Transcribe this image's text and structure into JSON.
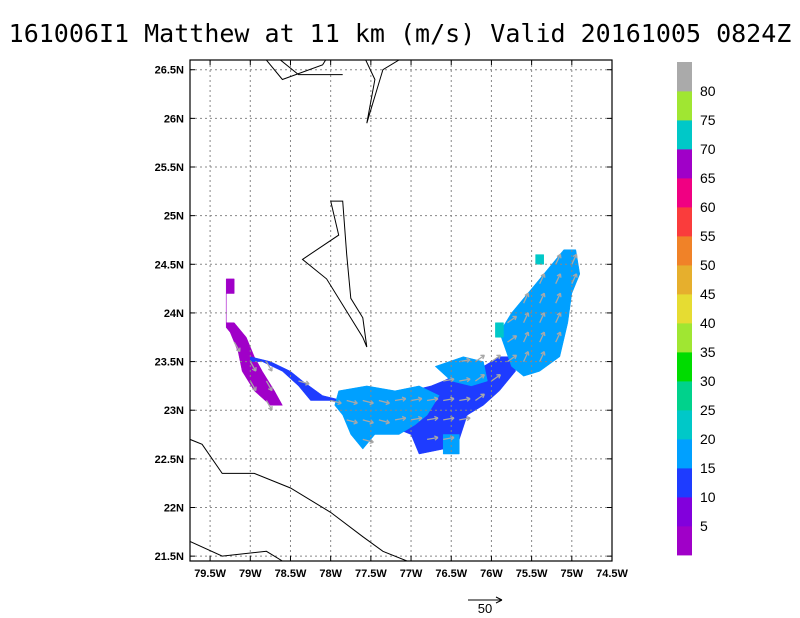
{
  "chart_data": {
    "type": "heatmap",
    "title": "161006I1 Matthew at 11 km (m/s) Valid 20161005 0824Z",
    "xlabel": "",
    "ylabel": "",
    "xlim": [
      -79.75,
      -74.5
    ],
    "ylim": [
      21.45,
      26.6
    ],
    "grid": true,
    "x_ticks": [
      {
        "value": -79.5,
        "label": "79.5W"
      },
      {
        "value": -79.0,
        "label": "79W"
      },
      {
        "value": -78.5,
        "label": "78.5W"
      },
      {
        "value": -78.0,
        "label": "78W"
      },
      {
        "value": -77.5,
        "label": "77.5W"
      },
      {
        "value": -77.0,
        "label": "77W"
      },
      {
        "value": -76.5,
        "label": "76.5W"
      },
      {
        "value": -76.0,
        "label": "76W"
      },
      {
        "value": -75.5,
        "label": "75.5W"
      },
      {
        "value": -75.0,
        "label": "75W"
      },
      {
        "value": -74.5,
        "label": "74.5W"
      }
    ],
    "y_ticks": [
      {
        "value": 21.5,
        "label": "21.5N"
      },
      {
        "value": 22.0,
        "label": "22N"
      },
      {
        "value": 22.5,
        "label": "22.5N"
      },
      {
        "value": 23.0,
        "label": "23N"
      },
      {
        "value": 23.5,
        "label": "23.5N"
      },
      {
        "value": 24.0,
        "label": "24N"
      },
      {
        "value": 24.5,
        "label": "24.5N"
      },
      {
        "value": 25.0,
        "label": "25N"
      },
      {
        "value": 25.5,
        "label": "25.5N"
      },
      {
        "value": 26.0,
        "label": "26N"
      },
      {
        "value": 26.5,
        "label": "26.5N"
      }
    ],
    "colorbar": {
      "levels": [
        "5",
        "10",
        "15",
        "20",
        "25",
        "30",
        "35",
        "40",
        "45",
        "50",
        "55",
        "60",
        "65",
        "70",
        "75",
        "80"
      ],
      "colors": [
        "#a000c8",
        "#8200dc",
        "#1e3cff",
        "#00a0ff",
        "#00c8c8",
        "#00d28c",
        "#00dc00",
        "#a0e632",
        "#e6dc32",
        "#e6af2d",
        "#f08228",
        "#fa3c3c",
        "#f00082",
        "#a000c8",
        "#00c8c8",
        "#a0e632",
        "#aaaaaa"
      ]
    },
    "reference_vector": {
      "label": "50",
      "units": "m/s"
    },
    "regions": [
      {
        "name": "purple-west",
        "color": "#a000c8",
        "band": "5-10",
        "polygon": [
          [
            -79.3,
            24.35
          ],
          [
            -79.2,
            24.35
          ],
          [
            -79.2,
            24.2
          ],
          [
            -79.3,
            24.2
          ],
          [
            -79.3,
            23.9
          ],
          [
            -79.2,
            23.9
          ],
          [
            -79.05,
            23.75
          ],
          [
            -78.95,
            23.55
          ],
          [
            -78.85,
            23.4
          ],
          [
            -78.7,
            23.2
          ],
          [
            -78.6,
            23.05
          ],
          [
            -78.75,
            23.05
          ],
          [
            -78.95,
            23.2
          ],
          [
            -79.1,
            23.4
          ],
          [
            -79.15,
            23.6
          ],
          [
            -79.25,
            23.8
          ],
          [
            -79.3,
            23.85
          ]
        ]
      },
      {
        "name": "blue-10-band",
        "color": "#1e3cff",
        "band": "10-15",
        "polygon": [
          [
            -79.0,
            23.5
          ],
          [
            -78.85,
            23.5
          ],
          [
            -78.6,
            23.4
          ],
          [
            -78.4,
            23.25
          ],
          [
            -78.25,
            23.1
          ],
          [
            -78.0,
            23.1
          ],
          [
            -77.75,
            23.05
          ],
          [
            -77.55,
            22.9
          ],
          [
            -77.5,
            22.75
          ],
          [
            -77.3,
            22.85
          ],
          [
            -77.0,
            22.75
          ],
          [
            -76.9,
            22.55
          ],
          [
            -76.6,
            22.6
          ],
          [
            -76.4,
            22.7
          ],
          [
            -76.3,
            22.95
          ],
          [
            -76.1,
            23.05
          ],
          [
            -75.9,
            23.2
          ],
          [
            -75.7,
            23.4
          ],
          [
            -75.7,
            23.55
          ],
          [
            -75.9,
            23.55
          ],
          [
            -76.1,
            23.45
          ],
          [
            -76.35,
            23.4
          ],
          [
            -76.6,
            23.3
          ],
          [
            -76.75,
            23.25
          ],
          [
            -77.0,
            23.2
          ],
          [
            -77.3,
            23.15
          ],
          [
            -77.55,
            23.1
          ],
          [
            -77.85,
            23.1
          ],
          [
            -78.1,
            23.15
          ],
          [
            -78.35,
            23.3
          ],
          [
            -78.5,
            23.4
          ],
          [
            -78.75,
            23.5
          ],
          [
            -79.0,
            23.55
          ]
        ]
      },
      {
        "name": "blue-15-west",
        "color": "#00a0ff",
        "band": "15-20",
        "polygon": [
          [
            -77.9,
            23.2
          ],
          [
            -77.55,
            23.25
          ],
          [
            -77.2,
            23.2
          ],
          [
            -76.9,
            23.25
          ],
          [
            -76.65,
            23.15
          ],
          [
            -76.8,
            22.95
          ],
          [
            -76.95,
            22.85
          ],
          [
            -77.15,
            22.75
          ],
          [
            -77.45,
            22.75
          ],
          [
            -77.6,
            22.6
          ],
          [
            -77.75,
            22.75
          ],
          [
            -77.85,
            22.95
          ],
          [
            -77.95,
            23.05
          ]
        ]
      },
      {
        "name": "blue-15-east",
        "color": "#00a0ff",
        "band": "15-20",
        "polygon": [
          [
            -75.9,
            23.8
          ],
          [
            -75.75,
            24.0
          ],
          [
            -75.55,
            24.2
          ],
          [
            -75.4,
            24.35
          ],
          [
            -75.1,
            24.65
          ],
          [
            -74.95,
            24.65
          ],
          [
            -74.9,
            24.4
          ],
          [
            -75.0,
            24.2
          ],
          [
            -75.05,
            23.9
          ],
          [
            -75.15,
            23.55
          ],
          [
            -75.4,
            23.4
          ],
          [
            -75.6,
            23.35
          ],
          [
            -75.75,
            23.45
          ]
        ]
      },
      {
        "name": "blue-15-core",
        "color": "#00a0ff",
        "band": "15-20",
        "polygon": [
          [
            -76.7,
            23.45
          ],
          [
            -76.35,
            23.55
          ],
          [
            -76.1,
            23.5
          ],
          [
            -76.05,
            23.3
          ],
          [
            -76.25,
            23.25
          ],
          [
            -76.5,
            23.3
          ]
        ]
      },
      {
        "name": "blue-15-south",
        "color": "#00a0ff",
        "band": "15-20",
        "polygon": [
          [
            -76.6,
            22.75
          ],
          [
            -76.4,
            22.75
          ],
          [
            -76.4,
            22.55
          ],
          [
            -76.6,
            22.55
          ]
        ]
      },
      {
        "name": "teal-patches",
        "color": "#00c8c8",
        "band": "20-25",
        "polygon": [
          [
            -75.45,
            24.6
          ],
          [
            -75.35,
            24.6
          ],
          [
            -75.35,
            24.5
          ],
          [
            -75.45,
            24.5
          ]
        ]
      },
      {
        "name": "teal-patch-mid",
        "color": "#00c8c8",
        "band": "20-25",
        "polygon": [
          [
            -75.95,
            23.9
          ],
          [
            -75.85,
            23.9
          ],
          [
            -75.85,
            23.75
          ],
          [
            -75.95,
            23.75
          ]
        ]
      }
    ],
    "map_lines": [
      [
        [
          -78.95,
          26.75
        ],
        [
          -78.6,
          26.4
        ],
        [
          -78.1,
          26.55
        ],
        [
          -77.95,
          26.75
        ]
      ],
      [
        [
          -78.85,
          26.75
        ],
        [
          -78.4,
          26.45
        ],
        [
          -77.85,
          26.45
        ]
      ],
      [
        [
          -77.65,
          26.75
        ],
        [
          -77.45,
          26.4
        ],
        [
          -77.55,
          25.95
        ],
        [
          -77.35,
          26.5
        ],
        [
          -77.15,
          26.6
        ]
      ],
      [
        [
          -78.0,
          25.15
        ],
        [
          -77.9,
          24.8
        ],
        [
          -78.35,
          24.55
        ],
        [
          -78.05,
          24.35
        ],
        [
          -77.6,
          23.75
        ],
        [
          -77.55,
          23.65
        ],
        [
          -77.6,
          23.95
        ],
        [
          -77.75,
          24.15
        ],
        [
          -77.8,
          24.6
        ],
        [
          -77.85,
          25.15
        ],
        [
          -78.0,
          25.15
        ]
      ],
      [
        [
          -79.75,
          22.7
        ],
        [
          -79.6,
          22.65
        ],
        [
          -79.35,
          22.35
        ],
        [
          -78.95,
          22.35
        ],
        [
          -78.5,
          22.2
        ],
        [
          -78.0,
          21.95
        ],
        [
          -77.6,
          21.7
        ],
        [
          -77.35,
          21.55
        ],
        [
          -77.05,
          21.45
        ]
      ],
      [
        [
          -79.75,
          21.65
        ],
        [
          -79.35,
          21.5
        ],
        [
          -78.8,
          21.55
        ],
        [
          -78.6,
          21.45
        ]
      ]
    ]
  }
}
